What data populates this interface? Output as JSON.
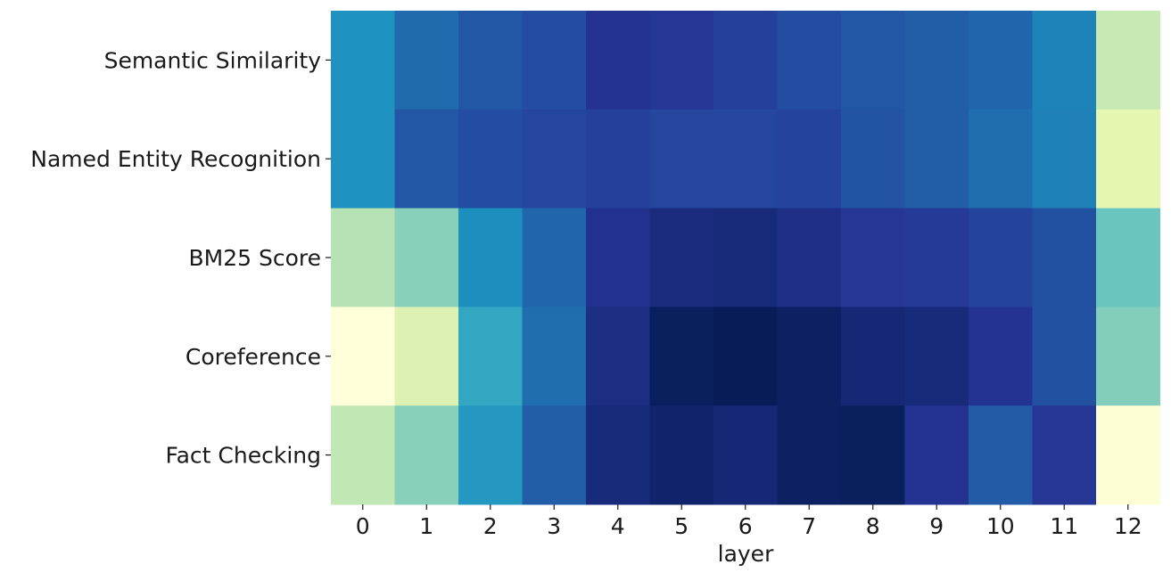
{
  "chart_data": {
    "type": "heatmap",
    "title": "",
    "xlabel": "layer",
    "ylabel": "",
    "x": [
      "0",
      "1",
      "2",
      "3",
      "4",
      "5",
      "6",
      "7",
      "8",
      "9",
      "10",
      "11",
      "12"
    ],
    "y": [
      "Semantic Similarity",
      "Named Entity Recognition",
      "BM25 Score",
      "Coreference",
      "Fact Checking"
    ],
    "colormap": "YlGnBu",
    "scale": "per-row relative intensity (0 = lightest, 1 = darkest)",
    "values": [
      [
        0.62,
        0.72,
        0.77,
        0.8,
        0.88,
        0.87,
        0.84,
        0.8,
        0.77,
        0.75,
        0.73,
        0.66,
        0.25
      ],
      [
        0.62,
        0.77,
        0.8,
        0.82,
        0.84,
        0.82,
        0.82,
        0.83,
        0.78,
        0.75,
        0.71,
        0.67,
        0.15
      ],
      [
        0.28,
        0.36,
        0.63,
        0.73,
        0.89,
        0.92,
        0.93,
        0.9,
        0.87,
        0.86,
        0.83,
        0.79,
        0.42
      ],
      [
        0.0,
        0.18,
        0.55,
        0.71,
        0.91,
        0.99,
        1.0,
        0.98,
        0.94,
        0.93,
        0.88,
        0.79,
        0.37
      ],
      [
        0.26,
        0.36,
        0.6,
        0.75,
        0.93,
        0.96,
        0.94,
        0.98,
        0.99,
        0.88,
        0.76,
        0.87,
        0.01
      ]
    ]
  }
}
